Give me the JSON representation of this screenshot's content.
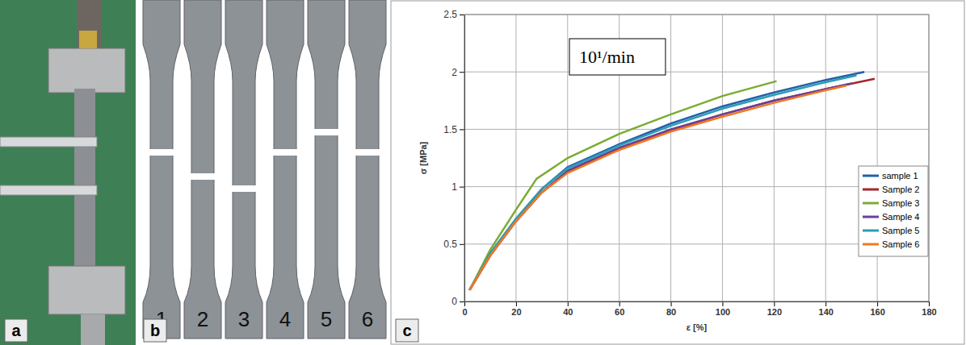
{
  "panels": [
    "a",
    "b",
    "c"
  ],
  "specimen_labels": [
    "1",
    "2",
    "3",
    "4",
    "5",
    "6"
  ],
  "chart_data": {
    "type": "line",
    "title": "10¹/min",
    "x_label": "ε [%]",
    "y_label": "σ [MPa]",
    "xlim": [
      0,
      180
    ],
    "xticks": [
      0,
      20,
      40,
      60,
      80,
      100,
      120,
      140,
      160,
      180
    ],
    "ylim": [
      0,
      2.5
    ],
    "yticks": [
      0,
      0.5,
      1,
      1.5,
      2,
      2.5
    ],
    "grid": true,
    "legend": "right",
    "series": [
      {
        "name": "sample 1",
        "color": "#2360a8",
        "x": [
          2,
          10,
          20,
          30,
          40,
          60,
          80,
          100,
          120,
          140,
          155
        ],
        "values": [
          0.1,
          0.42,
          0.72,
          0.98,
          1.17,
          1.37,
          1.55,
          1.7,
          1.82,
          1.93,
          2.0
        ]
      },
      {
        "name": "Sample 2",
        "color": "#a4262c",
        "x": [
          2,
          10,
          20,
          30,
          40,
          60,
          80,
          100,
          120,
          140,
          159
        ],
        "values": [
          0.1,
          0.4,
          0.7,
          0.95,
          1.13,
          1.33,
          1.49,
          1.63,
          1.75,
          1.85,
          1.94
        ]
      },
      {
        "name": "Sample 3",
        "color": "#7aac33",
        "x": [
          2,
          10,
          20,
          28,
          40,
          60,
          80,
          100,
          121
        ],
        "values": [
          0.1,
          0.45,
          0.8,
          1.07,
          1.25,
          1.46,
          1.63,
          1.79,
          1.92
        ]
      },
      {
        "name": "Sample 4",
        "color": "#6b3f9a",
        "x": [
          2,
          10,
          20,
          30,
          40,
          60,
          80,
          100,
          120,
          140,
          150
        ],
        "values": [
          0.1,
          0.4,
          0.7,
          0.95,
          1.14,
          1.34,
          1.5,
          1.63,
          1.75,
          1.85,
          1.9
        ]
      },
      {
        "name": "Sample 5",
        "color": "#2a9db5",
        "x": [
          2,
          10,
          20,
          30,
          40,
          60,
          80,
          100,
          120,
          140,
          152
        ],
        "values": [
          0.1,
          0.42,
          0.72,
          0.98,
          1.16,
          1.36,
          1.53,
          1.68,
          1.8,
          1.91,
          1.97
        ]
      },
      {
        "name": "Sample 6",
        "color": "#ee7a22",
        "x": [
          2,
          10,
          20,
          30,
          40,
          60,
          80,
          100,
          120,
          140,
          148
        ],
        "values": [
          0.1,
          0.4,
          0.7,
          0.95,
          1.12,
          1.32,
          1.48,
          1.61,
          1.73,
          1.84,
          1.88
        ]
      }
    ]
  }
}
